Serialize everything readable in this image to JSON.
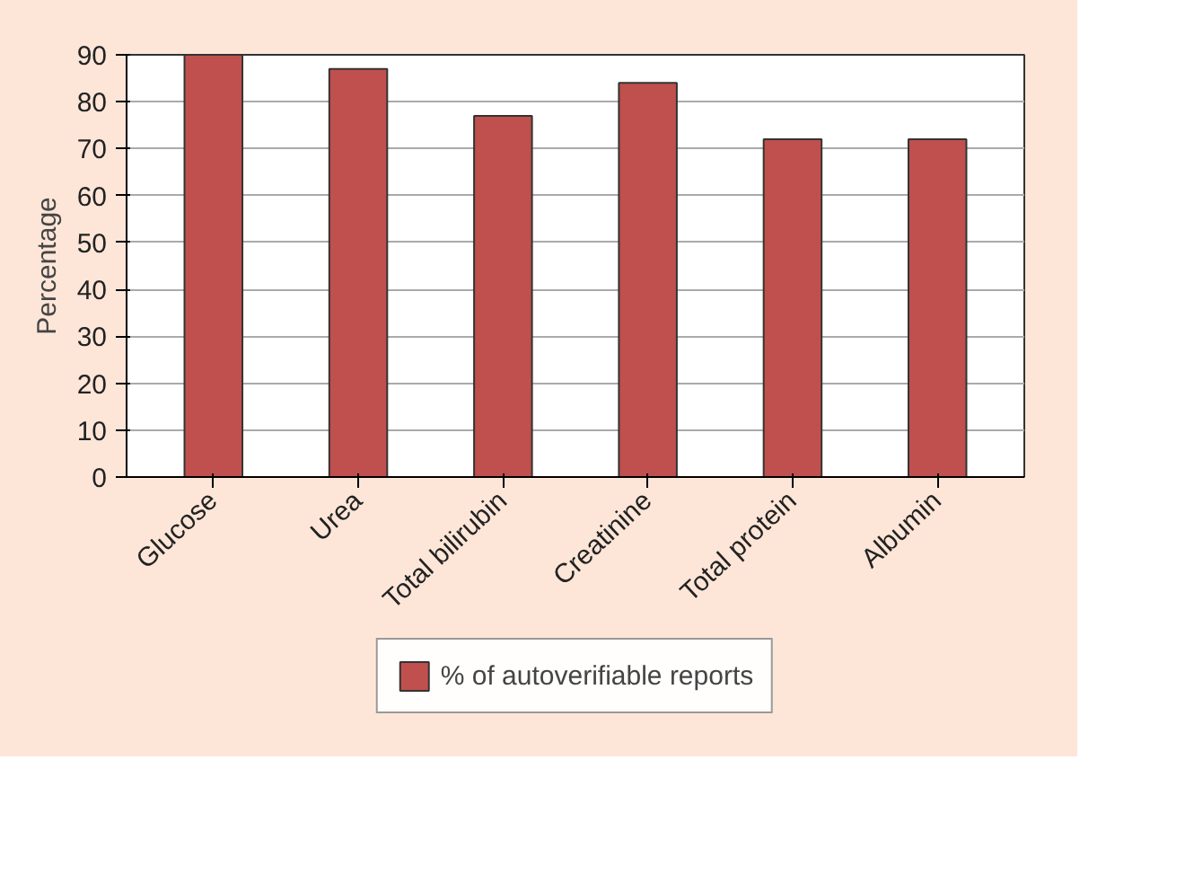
{
  "chart_data": {
    "type": "bar",
    "ylabel": "Percentage",
    "categories": [
      "Glucose",
      "Urea",
      "Total bilirubin",
      "Creatinine",
      "Total protein",
      "Albumin"
    ],
    "series": [
      {
        "name": "% of autoverifiable reports",
        "color": "#c0504d",
        "values": [
          90,
          87,
          77,
          84,
          72,
          72
        ]
      }
    ],
    "ylim": [
      0,
      90
    ],
    "yticks": [
      0,
      10,
      20,
      30,
      40,
      50,
      60,
      70,
      80,
      90
    ],
    "grid": "y",
    "legend": "bottom"
  }
}
